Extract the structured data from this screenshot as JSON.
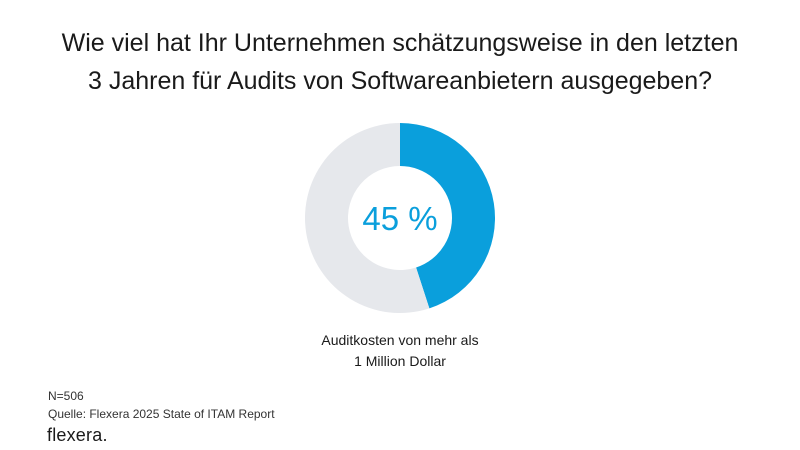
{
  "header": {
    "title_line1": "Wie viel hat Ihr Unternehmen schätzungsweise in den letzten",
    "title_line2": "3 Jahren für Audits von Softwareanbietern ausgegeben?"
  },
  "chart_data": {
    "type": "pie",
    "title": "Wie viel hat Ihr Unternehmen schätzungsweise in den letzten 3 Jahren für Audits von Softwareanbietern ausgegeben?",
    "center_label": "45 %",
    "slices": [
      {
        "label": "Auditkosten von mehr als 1 Million Dollar",
        "value": 45,
        "color": "#0a9fdc"
      },
      {
        "label": "",
        "value": 55,
        "color": "#e6e8ec"
      }
    ],
    "caption_line1": "Auditkosten von mehr als",
    "caption_line2": "1 Million Dollar"
  },
  "footer": {
    "sample": "N=506",
    "source": "Quelle: Flexera 2025 State of ITAM Report",
    "logo_text": "flexera",
    "logo_dot": "."
  },
  "colors": {
    "accent": "#0a9fdc",
    "track": "#e6e8ec"
  }
}
